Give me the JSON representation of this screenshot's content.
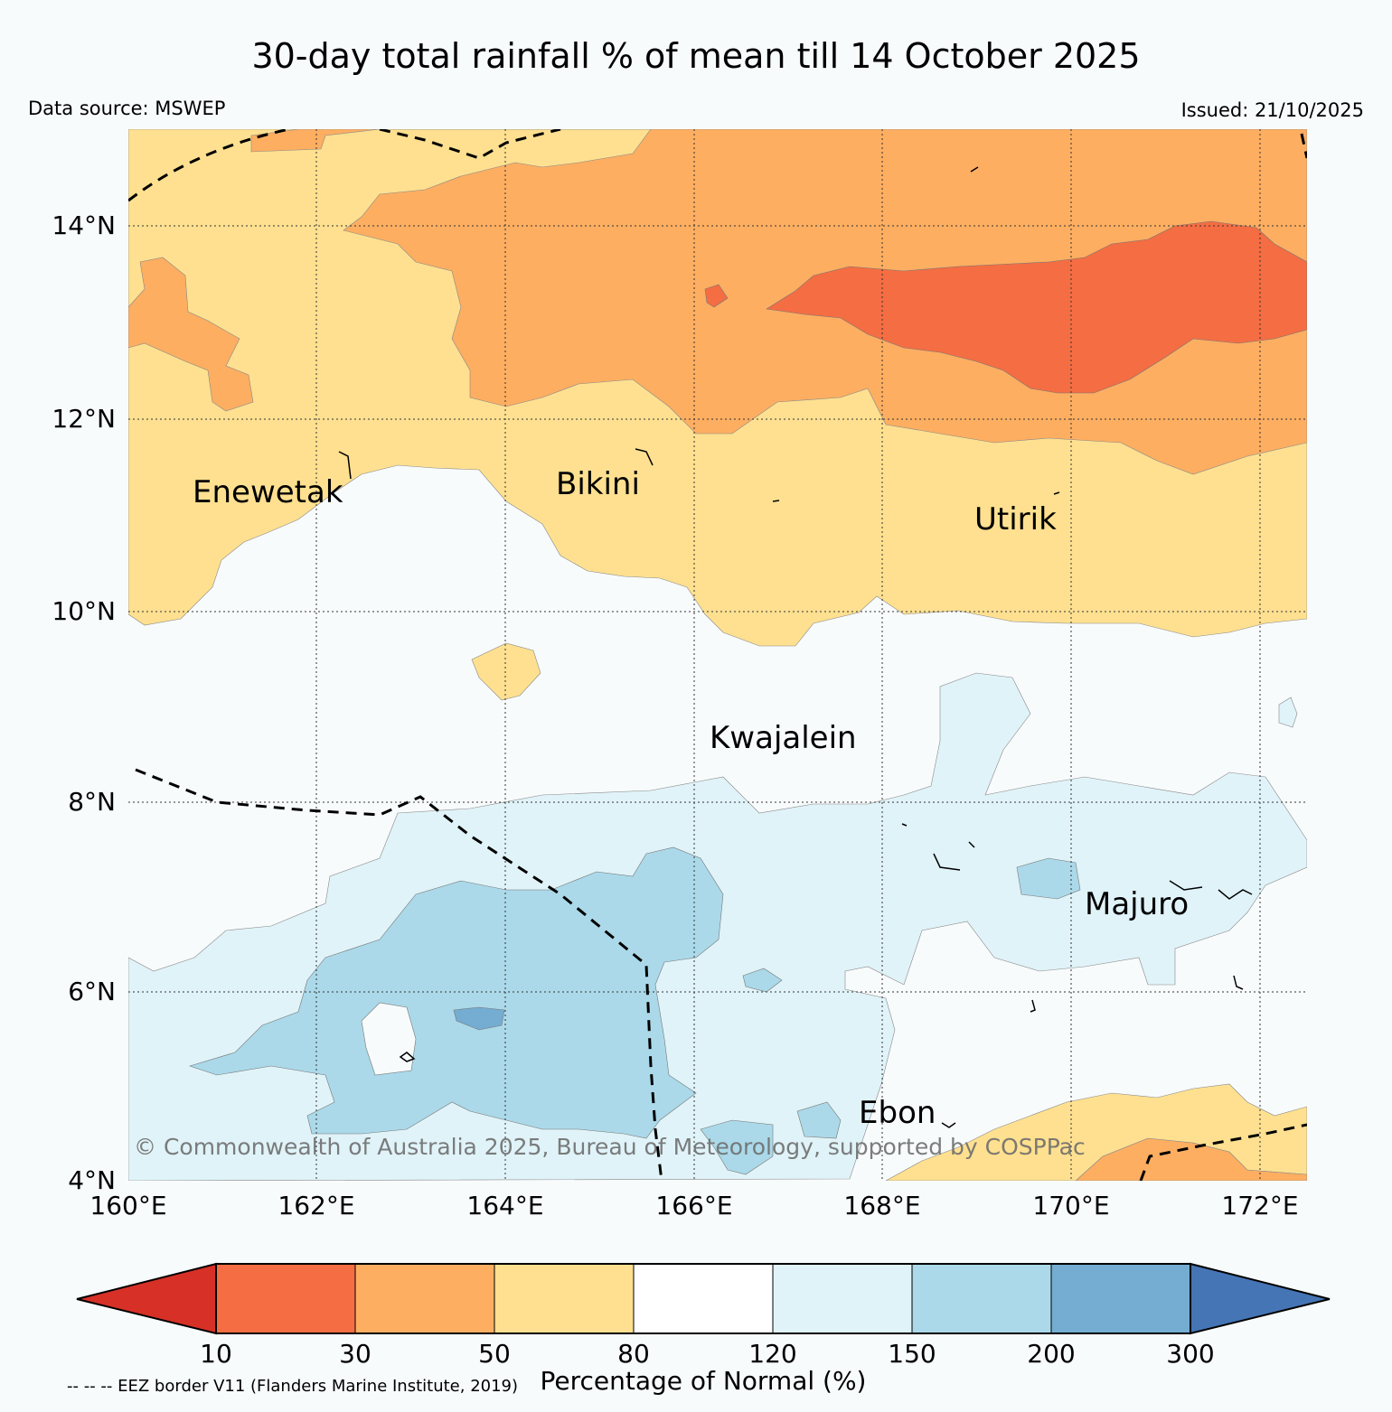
{
  "title": "30-day total rainfall % of mean till 14 October 2025",
  "data_source": "Data source: MSWEP",
  "issued": "Issued: 21/10/2025",
  "map": {
    "lon_range": [
      160,
      172.5
    ],
    "lat_range": [
      4,
      15
    ],
    "lon_ticks": [
      "160°E",
      "162°E",
      "164°E",
      "166°E",
      "168°E",
      "170°E",
      "172°E"
    ],
    "lat_ticks": [
      "4°N",
      "6°N",
      "8°N",
      "10°N",
      "12°N",
      "14°N"
    ],
    "places": [
      {
        "name": "Enewetak",
        "lon": 162.3,
        "lat": 11.6
      },
      {
        "name": "Bikini",
        "lon": 165.5,
        "lat": 11.6
      },
      {
        "name": "Utirik",
        "lon": 169.7,
        "lat": 11.3
      },
      {
        "name": "Kwajalein",
        "lon": 167.4,
        "lat": 9.1
      },
      {
        "name": "Majuro",
        "lon": 171.2,
        "lat": 7.1
      },
      {
        "name": "Ebon",
        "lon": 168.6,
        "lat": 4.6
      }
    ],
    "copyright": "© Commonwealth of Australia 2025, Bureau of Meteorology, supported by COSPPac"
  },
  "colorbar": {
    "label": "Percentage of Normal (%)",
    "ticks": [
      "10",
      "30",
      "50",
      "80",
      "120",
      "150",
      "200",
      "300"
    ],
    "colors": {
      "below_10": "#d73027",
      "10-30": "#f46d43",
      "30-50": "#fdae61",
      "50-80": "#fee090",
      "80-120": "#ffffff",
      "120-150": "#e0f3f8",
      "150-200": "#abd9e9",
      "200-300": "#74add1",
      "above_300": "#4575b4"
    }
  },
  "eez_note": "-- -- -- EEZ border V11 (Flanders Marine Institute, 2019)"
}
